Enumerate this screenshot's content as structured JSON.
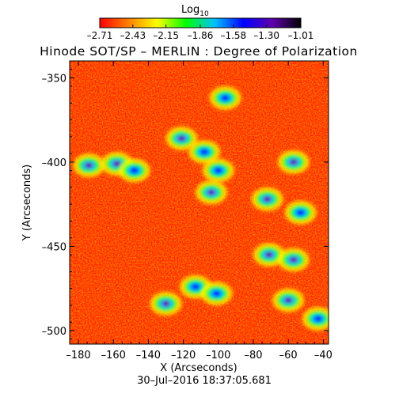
{
  "chart_data": {
    "type": "heatmap",
    "title": "Hinode SOT/SP – MERLIN : Degree of Polarization",
    "xlabel": "X (Arcseconds)",
    "ylabel": "Y (Arcseconds)",
    "xlim": [
      -185,
      -37
    ],
    "ylim": [
      -508,
      -340
    ],
    "x_ticks": [
      -180,
      -160,
      -140,
      -120,
      -100,
      -80,
      -60,
      -40
    ],
    "y_ticks": [
      -350,
      -400,
      -450,
      -500
    ],
    "x_tick_labels": [
      "–180",
      "–160",
      "–140",
      "–120",
      "–100",
      "–80",
      "–60",
      "–40"
    ],
    "y_tick_labels": [
      "–350",
      "–400",
      "–450",
      "–500"
    ],
    "colorbar": {
      "label": "Log",
      "label_subscript": "10",
      "range": [
        -2.71,
        -1.01
      ],
      "ticks": [
        -2.71,
        -2.43,
        -2.15,
        -1.86,
        -1.58,
        -1.3,
        -1.01
      ],
      "tick_labels": [
        "–2.71",
        "–2.43",
        "–2.15",
        "–1.86",
        "–1.58",
        "–1.30",
        "–1.01"
      ],
      "colormap": [
        "#ff0000",
        "#ff8000",
        "#ffff00",
        "#00ff00",
        "#00c0ff",
        "#0000ff",
        "#6000b0",
        "#000000"
      ]
    },
    "timestamp": "30–Jul–2016 18:37:05.681",
    "grid": false,
    "data_description": "Degree of polarization map; background mostly red/orange near -2.6, network regions with higher polarization (green to blue/black up to -1.01)",
    "high_polarization_regions": [
      {
        "x": -174,
        "y": -402,
        "value": -1.3
      },
      {
        "x": -158,
        "y": -401,
        "value": -1.3
      },
      {
        "x": -148,
        "y": -405,
        "value": -1.4
      },
      {
        "x": -121,
        "y": -386,
        "value": -1.3
      },
      {
        "x": -108,
        "y": -394,
        "value": -1.5
      },
      {
        "x": -96,
        "y": -362,
        "value": -1.6
      },
      {
        "x": -100,
        "y": -405,
        "value": -1.5
      },
      {
        "x": -104,
        "y": -418,
        "value": -1.3
      },
      {
        "x": -72,
        "y": -422,
        "value": -1.3
      },
      {
        "x": -57,
        "y": -400,
        "value": -1.3
      },
      {
        "x": -53,
        "y": -430,
        "value": -1.5
      },
      {
        "x": -71,
        "y": -455,
        "value": -1.3
      },
      {
        "x": -57,
        "y": -458,
        "value": -1.2
      },
      {
        "x": -113,
        "y": -474,
        "value": -1.5
      },
      {
        "x": -101,
        "y": -478,
        "value": -1.5
      },
      {
        "x": -130,
        "y": -484,
        "value": -1.3
      },
      {
        "x": -60,
        "y": -482,
        "value": -1.3
      },
      {
        "x": -43,
        "y": -493,
        "value": -1.4
      }
    ]
  }
}
